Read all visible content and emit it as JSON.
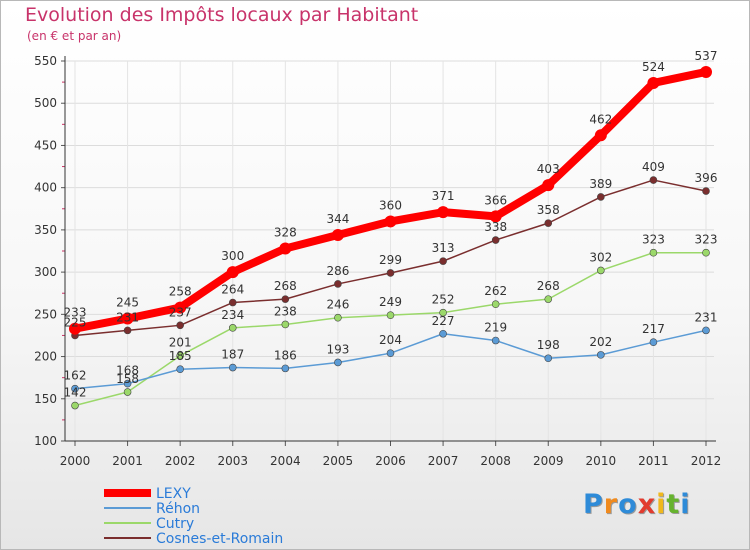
{
  "header": {
    "title": "Evolution des Impôts locaux par Habitant",
    "subtitle": "(en € et par an)"
  },
  "logo": {
    "text": "Proxiti",
    "letter_colors": [
      "#2e8bd8",
      "#f08a1d",
      "#2e8bd8",
      "#e23b2e",
      "#f0b81d",
      "#66b32e",
      "#2e8bd8"
    ]
  },
  "chart_data": {
    "type": "line",
    "title": "Evolution des Impôts locaux par Habitant",
    "subtitle": "(en € et par an)",
    "x": [
      "2000",
      "2001",
      "2002",
      "2003",
      "2004",
      "2005",
      "2006",
      "2007",
      "2008",
      "2009",
      "2010",
      "2011",
      "2012"
    ],
    "ylim": [
      100,
      550
    ],
    "yticks": [
      "100",
      "150",
      "200",
      "250",
      "300",
      "350",
      "400",
      "450",
      "500",
      "550"
    ],
    "legend_position": "bottom-left",
    "series": [
      {
        "name": "LEXY",
        "color": "#ff0000",
        "values": [
          233,
          245,
          258,
          300,
          328,
          344,
          360,
          371,
          366,
          403,
          462,
          524,
          537
        ],
        "labels": [
          "233",
          "245",
          "258",
          "300",
          "328",
          "344",
          "360",
          "371",
          "366",
          "403",
          "462",
          "524",
          "537"
        ]
      },
      {
        "name": "Réhon",
        "color": "#5b9bd5",
        "values": [
          162,
          168,
          185,
          187,
          186,
          193,
          204,
          227,
          219,
          198,
          202,
          217,
          231
        ],
        "labels": [
          "162",
          "168",
          "185",
          "187",
          "186",
          "193",
          "204",
          "227",
          "219",
          "198",
          "202",
          "217",
          "231"
        ]
      },
      {
        "name": "Cutry",
        "color": "#9bd86a",
        "values": [
          142,
          158,
          201,
          234,
          238,
          246,
          249,
          252,
          262,
          268,
          302,
          323,
          323
        ],
        "labels": [
          "142",
          "158",
          "201",
          "234",
          "238",
          "246",
          "249",
          "252",
          "262",
          "268",
          "302",
          "323",
          "323"
        ]
      },
      {
        "name": "Cosnes-et-Romain",
        "color": "#7a2e2e",
        "values": [
          225,
          231,
          237,
          264,
          268,
          286,
          299,
          313,
          338,
          358,
          389,
          409,
          396
        ],
        "labels": [
          "225",
          "231",
          "237",
          "264",
          "268",
          "286",
          "299",
          "313",
          "338",
          "358",
          "389",
          "409",
          "396"
        ]
      }
    ]
  }
}
